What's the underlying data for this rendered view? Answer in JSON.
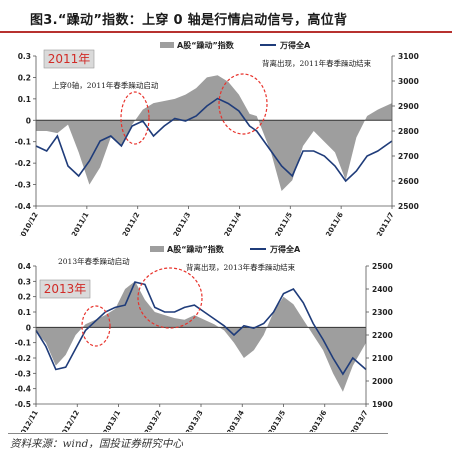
{
  "header": {
    "title": "图3.“躁动”指数：上穿 0 轴是行情启动信号，高位背"
  },
  "source": "资料来源：wind，国投证券研究中心",
  "colors": {
    "area": "#9e9e9e",
    "line": "#1f3c7a",
    "highlight_circle": "#e8322b",
    "year_box_fill": "#dadada",
    "year_box_text": "#d12b27"
  },
  "chart_data": [
    {
      "type": "area",
      "year_badge": "2011年",
      "legend": [
        "A股“躁动”指数",
        "万得全A"
      ],
      "annotations": [
        "上穿0轴，2011年春季躁动启动",
        "背离出现，2011年春季躁动结束"
      ],
      "x_ticks": [
        "2010/12",
        "2011/1",
        "2011/2",
        "2011/3",
        "2011/4",
        "2011/5",
        "2011/6",
        "2011/7"
      ],
      "y_left": {
        "ticks": [
          "0.3",
          "0.2",
          "0.1",
          "0",
          "-0.1",
          "-0.2",
          "-0.3",
          "-0.4"
        ],
        "lim": [
          -0.4,
          0.3
        ]
      },
      "y_right": {
        "ticks": [
          "3100",
          "3000",
          "2900",
          "2800",
          "2700",
          "2600",
          "2500"
        ],
        "lim": [
          2500,
          3100
        ]
      },
      "series": [
        {
          "name": "A股“躁动”指数",
          "axis": "left",
          "x": [
            0,
            0.03,
            0.06,
            0.09,
            0.12,
            0.15,
            0.18,
            0.21,
            0.24,
            0.27,
            0.3,
            0.33,
            0.36,
            0.39,
            0.42,
            0.45,
            0.48,
            0.51,
            0.54,
            0.57,
            0.6,
            0.62,
            0.66,
            0.69,
            0.72,
            0.75,
            0.78,
            0.81,
            0.84,
            0.87,
            0.9,
            0.93,
            0.96,
            1.0
          ],
          "values": [
            -0.05,
            -0.05,
            -0.06,
            -0.02,
            -0.15,
            -0.3,
            -0.22,
            -0.08,
            -0.12,
            -0.02,
            0.05,
            0.08,
            0.09,
            0.1,
            0.12,
            0.15,
            0.2,
            0.21,
            0.18,
            0.12,
            0.03,
            0.02,
            -0.15,
            -0.33,
            -0.28,
            -0.12,
            -0.05,
            -0.1,
            -0.15,
            -0.28,
            -0.08,
            0.02,
            0.05,
            0.08
          ]
        },
        {
          "name": "万得全A",
          "axis": "right",
          "x": [
            0,
            0.03,
            0.06,
            0.09,
            0.12,
            0.15,
            0.18,
            0.21,
            0.24,
            0.27,
            0.3,
            0.33,
            0.36,
            0.39,
            0.42,
            0.45,
            0.48,
            0.51,
            0.54,
            0.57,
            0.6,
            0.62,
            0.66,
            0.69,
            0.72,
            0.75,
            0.78,
            0.81,
            0.84,
            0.87,
            0.9,
            0.93,
            0.96,
            1.0
          ],
          "values": [
            2740,
            2720,
            2780,
            2660,
            2620,
            2680,
            2760,
            2780,
            2740,
            2820,
            2840,
            2780,
            2820,
            2850,
            2840,
            2860,
            2900,
            2930,
            2910,
            2880,
            2820,
            2800,
            2720,
            2660,
            2620,
            2720,
            2720,
            2700,
            2660,
            2600,
            2640,
            2700,
            2720,
            2760
          ]
        }
      ]
    },
    {
      "type": "area",
      "year_badge": "2013年",
      "legend": [
        "A股“躁动”指数",
        "万得全A"
      ],
      "annotations": [
        "2013年春季躁动启动",
        "背离出现，2013年春季躁动结束"
      ],
      "x_ticks": [
        "2012/11",
        "2012/12",
        "2013/1",
        "2013/2",
        "2013/3",
        "2013/4",
        "2013/5",
        "2013/6",
        "2013/7"
      ],
      "y_left": {
        "ticks": [
          "0.4",
          "0.3",
          "0.2",
          "0.1",
          "0",
          "-0.1",
          "-0.2",
          "-0.3",
          "-0.4",
          "-0.5"
        ],
        "lim": [
          -0.5,
          0.4
        ]
      },
      "y_right": {
        "ticks": [
          "2500",
          "2400",
          "2300",
          "2200",
          "2100",
          "2000",
          "1900"
        ],
        "lim": [
          1900,
          2500
        ]
      },
      "series": [
        {
          "name": "A股“躁动”指数",
          "axis": "left",
          "x": [
            0,
            0.03,
            0.06,
            0.09,
            0.12,
            0.15,
            0.18,
            0.21,
            0.24,
            0.27,
            0.3,
            0.33,
            0.36,
            0.39,
            0.42,
            0.45,
            0.48,
            0.51,
            0.54,
            0.57,
            0.6,
            0.63,
            0.66,
            0.69,
            0.72,
            0.75,
            0.78,
            0.81,
            0.84,
            0.87,
            0.9,
            0.93,
            0.96,
            1.0
          ],
          "values": [
            -0.03,
            -0.1,
            -0.25,
            -0.18,
            -0.05,
            0.02,
            0.05,
            0.08,
            0.12,
            0.25,
            0.3,
            0.18,
            0.1,
            0.08,
            0.06,
            0.05,
            0.08,
            0.05,
            0.02,
            -0.02,
            -0.1,
            -0.2,
            -0.15,
            -0.05,
            0.1,
            0.2,
            0.15,
            0.05,
            -0.05,
            -0.15,
            -0.3,
            -0.42,
            -0.25,
            -0.1
          ]
        },
        {
          "name": "万得全A",
          "axis": "right",
          "x": [
            0,
            0.03,
            0.06,
            0.09,
            0.12,
            0.15,
            0.18,
            0.21,
            0.24,
            0.27,
            0.3,
            0.33,
            0.36,
            0.39,
            0.42,
            0.45,
            0.48,
            0.51,
            0.54,
            0.57,
            0.6,
            0.63,
            0.66,
            0.69,
            0.72,
            0.75,
            0.78,
            0.81,
            0.84,
            0.87,
            0.9,
            0.93,
            0.96,
            1.0
          ],
          "values": [
            2220,
            2150,
            2050,
            2060,
            2140,
            2220,
            2260,
            2300,
            2320,
            2330,
            2430,
            2420,
            2320,
            2300,
            2300,
            2320,
            2330,
            2300,
            2270,
            2240,
            2200,
            2240,
            2230,
            2250,
            2300,
            2380,
            2400,
            2340,
            2250,
            2180,
            2100,
            2030,
            2100,
            2050
          ]
        }
      ]
    }
  ]
}
